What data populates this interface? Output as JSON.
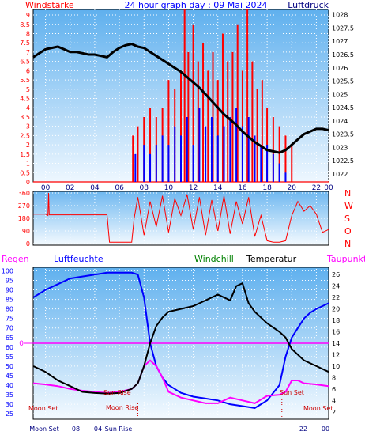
{
  "header": {
    "left": "Windstärke",
    "center": "24 hour graph day : 09 Mai 2024",
    "right": "Luftdruck"
  },
  "bottom_header": {
    "regen": "Regen",
    "luftfeuchte": "Luftfeuchte",
    "windchill": "Windchill",
    "temperatur": "Temperatur",
    "taupunkt": "Taupunkt"
  },
  "colors": {
    "red": "#ff0000",
    "blue": "#0000ff",
    "black": "#000000",
    "magenta": "#ff00ff",
    "green": "#008000",
    "panel_top": "#6fb8f0",
    "panel_bottom": "#ffffff"
  },
  "chart_data": [
    {
      "type": "line",
      "name": "wind-and-pressure",
      "x_ticks": [
        "00",
        "02",
        "04",
        "06",
        "08",
        "10",
        "12",
        "14",
        "16",
        "18",
        "20",
        "22",
        "00"
      ],
      "left_axis_ticks": [
        "9",
        "8.5",
        "8",
        "7.5",
        "7",
        "6.5",
        "6",
        "5.5",
        "5",
        "4.5",
        "4",
        "3.5",
        "3",
        "2.5",
        "2",
        "1.5",
        "1",
        "0.5",
        "0"
      ],
      "right_axis_ticks": [
        "1028",
        "1027.5",
        "1027",
        "1026.5",
        "1026",
        "1025.5",
        "1025",
        "1024.5",
        "1024",
        "1023.5",
        "1023",
        "1022.5",
        "1022"
      ],
      "ylim_left": [
        0,
        9.3
      ],
      "ylim_right": [
        1021.7,
        1028.2
      ],
      "series": {
        "pressure": {
          "x": [
            0,
            0.5,
            1,
            1.5,
            2,
            2.5,
            3,
            3.5,
            4,
            4.5,
            5,
            5.5,
            6,
            6.5,
            7,
            7.5,
            8,
            8.5,
            9,
            9.5,
            10,
            10.5,
            11,
            11.5,
            12,
            12.5,
            13,
            13.5,
            14,
            14.5,
            15,
            15.5,
            16,
            16.5,
            17,
            17.5,
            18,
            18.5,
            19,
            19.5,
            20,
            20.5,
            21,
            21.5,
            22,
            22.5,
            23,
            23.5,
            24
          ],
          "y": [
            1026.4,
            1026.55,
            1026.7,
            1026.75,
            1026.8,
            1026.7,
            1026.6,
            1026.6,
            1026.55,
            1026.5,
            1026.5,
            1026.45,
            1026.4,
            1026.6,
            1026.75,
            1026.85,
            1026.9,
            1026.8,
            1026.75,
            1026.6,
            1026.45,
            1026.3,
            1026.15,
            1026.0,
            1025.85,
            1025.65,
            1025.45,
            1025.25,
            1025.0,
            1024.75,
            1024.5,
            1024.25,
            1024.05,
            1023.85,
            1023.6,
            1023.4,
            1023.2,
            1023.05,
            1022.9,
            1022.85,
            1022.8,
            1022.9,
            1023.1,
            1023.3,
            1023.5,
            1023.6,
            1023.7,
            1023.7,
            1023.65
          ]
        },
        "wind_gust": {
          "x": [
            8.1,
            8.5,
            9,
            9.5,
            10,
            10.5,
            11,
            11.5,
            12,
            12.3,
            12.6,
            13,
            13.4,
            13.8,
            14.2,
            14.6,
            15,
            15.4,
            15.8,
            16.2,
            16.6,
            17,
            17.4,
            17.8,
            18.2,
            18.6,
            19,
            19.5,
            20,
            20.5,
            21
          ],
          "y": [
            2.5,
            3,
            3.5,
            4,
            3.5,
            4,
            5.5,
            5,
            6,
            9.3,
            7,
            8.5,
            6.5,
            7.5,
            6,
            7,
            5.5,
            8,
            6.5,
            7,
            8.5,
            6,
            9.3,
            6.5,
            5,
            5.5,
            4,
            3.5,
            3,
            2.5,
            2
          ]
        },
        "wind_speed": {
          "x": [
            8.3,
            9,
            9.5,
            10,
            10.5,
            11,
            11.5,
            12,
            12.5,
            13,
            13.5,
            14,
            14.5,
            15,
            15.5,
            16,
            16.5,
            17,
            17.5,
            18,
            18.5,
            19,
            19.5,
            20,
            20.5,
            21
          ],
          "y": [
            1.5,
            2,
            1.5,
            2,
            2.5,
            2,
            3,
            2.5,
            3.5,
            2,
            4,
            3,
            3.5,
            2.5,
            3,
            3.5,
            4,
            3,
            3.5,
            2.5,
            2,
            2,
            1.5,
            1,
            0.5,
            0
          ]
        }
      }
    },
    {
      "type": "line",
      "name": "wind-direction",
      "left_axis_ticks": [
        "360",
        "270",
        "180",
        "90",
        "0"
      ],
      "right_axis_labels": [
        "N",
        "W",
        "S",
        "O",
        "N"
      ],
      "ylim": [
        0,
        360
      ],
      "series": {
        "direction": {
          "x": [
            0,
            1,
            1.2,
            1.25,
            1.3,
            2,
            4,
            6,
            6.2,
            7.5,
            8,
            8.2,
            8.5,
            9,
            9.5,
            10,
            10.5,
            11,
            11.5,
            12,
            12.5,
            13,
            13.5,
            14,
            14.5,
            15,
            15.5,
            16,
            16.5,
            17,
            17.5,
            18,
            18.5,
            19,
            19.5,
            20,
            20.5,
            21,
            21.5,
            22,
            22.5,
            23,
            23.5,
            24
          ],
          "y": [
            210,
            210,
            200,
            360,
            205,
            205,
            205,
            205,
            10,
            10,
            10,
            180,
            330,
            60,
            300,
            120,
            340,
            80,
            320,
            200,
            350,
            100,
            330,
            60,
            310,
            90,
            340,
            70,
            300,
            140,
            330,
            50,
            200,
            20,
            10,
            10,
            20,
            200,
            300,
            230,
            270,
            210,
            80,
            100
          ]
        }
      }
    },
    {
      "type": "line",
      "name": "humidity-and-temperature",
      "left_axis_ticks": [
        "100",
        "95",
        "90",
        "85",
        "80",
        "75",
        "70",
        "65",
        "60",
        "55",
        "50",
        "45",
        "40",
        "35",
        "30",
        "25"
      ],
      "right_axis_ticks": [
        "26",
        "24",
        "22",
        "20",
        "18",
        "16",
        "14",
        "12",
        "10",
        "8",
        "6",
        "4",
        "2"
      ],
      "rain_axis_label": "0",
      "ylim_left": [
        23,
        101
      ],
      "ylim_right": [
        1,
        27
      ],
      "annotations": [
        "Moon Set",
        "Moon Rise",
        "Sun Rise",
        "Sun Set",
        "Moon Set",
        "Sun Set",
        "Moon Set"
      ],
      "bottom_ticks": [
        "Moon Set",
        "08",
        "04",
        "Sun Rise",
        "22",
        "00"
      ],
      "series": {
        "humidity": {
          "x": [
            0,
            1,
            2,
            3,
            4,
            5,
            6,
            7,
            8,
            8.5,
            9,
            9.5,
            10,
            10.5,
            11,
            11.5,
            12,
            13,
            14,
            15,
            16,
            17,
            18,
            19,
            20,
            20.5,
            21,
            21.5,
            22,
            22.5,
            23,
            24
          ],
          "y": [
            86,
            90,
            93,
            96,
            97,
            98,
            99,
            99,
            99,
            98,
            86,
            62,
            50,
            44,
            40,
            38,
            36,
            34,
            33,
            32,
            30,
            29,
            28,
            32,
            40,
            55,
            65,
            70,
            75,
            78,
            80,
            83
          ]
        },
        "temperature": {
          "x": [
            0,
            1,
            2,
            3,
            4,
            5,
            6,
            7,
            8,
            8.5,
            9,
            9.5,
            10,
            10.5,
            11,
            12,
            13,
            14,
            15,
            16,
            16.5,
            17,
            17.5,
            18,
            19,
            20,
            20.5,
            21,
            22,
            23,
            24
          ],
          "y": [
            10,
            9,
            7.5,
            6.5,
            5.5,
            5.3,
            5.2,
            5.3,
            6,
            7,
            10,
            14,
            17,
            18.5,
            19.5,
            20,
            20.5,
            21.5,
            22.5,
            21.5,
            24,
            24.5,
            21,
            19.5,
            17.5,
            16,
            15,
            13,
            11,
            10,
            9
          ]
        },
        "dewpoint": {
          "x": [
            0,
            1,
            2,
            3,
            4,
            5,
            6,
            7,
            8,
            8.5,
            9,
            9.5,
            10,
            10.5,
            11,
            12,
            13,
            14,
            15,
            16,
            17,
            18,
            19,
            20,
            20.5,
            21,
            21.5,
            22,
            23,
            24
          ],
          "y": [
            7,
            6.8,
            6.5,
            6,
            5.7,
            5.5,
            5.3,
            5.5,
            6,
            7,
            10,
            11,
            10,
            8,
            5.5,
            4.5,
            4,
            3.5,
            3.5,
            4.5,
            4,
            3.5,
            4.8,
            5,
            5.5,
            7.5,
            7.5,
            7,
            6.8,
            6.5
          ]
        }
      }
    }
  ]
}
